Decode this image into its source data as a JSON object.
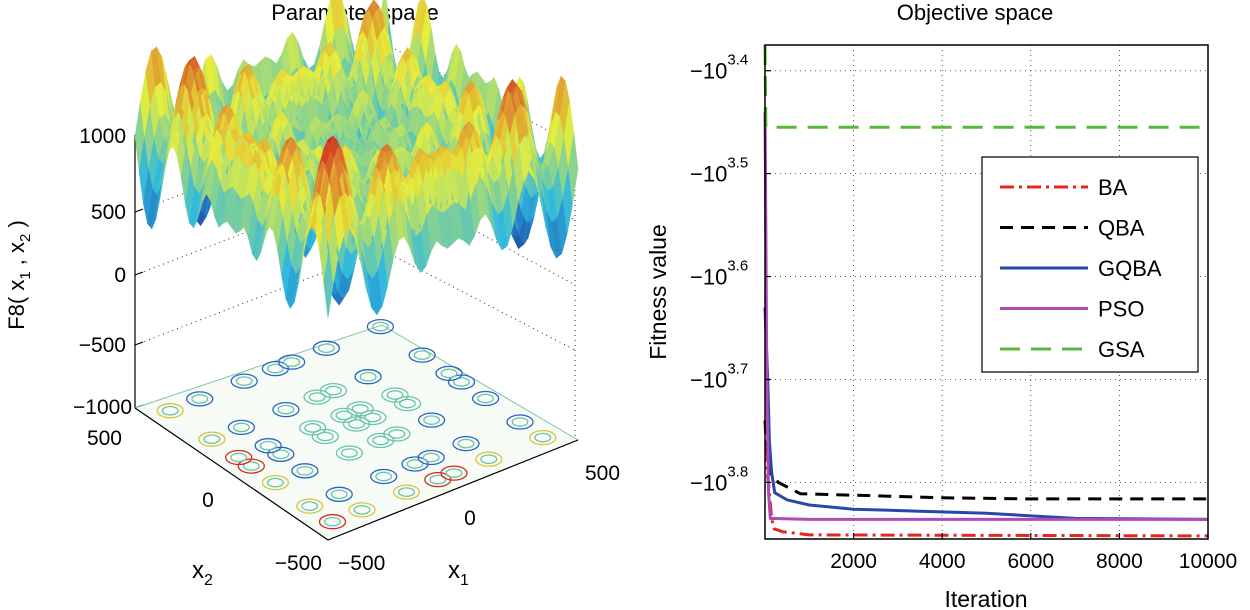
{
  "chart_data": [
    {
      "type": "surface3d",
      "title": "Parameter space",
      "zlabel_main": "F8( x",
      "zlabel_sub1": "1",
      "zlabel_mid": " , x",
      "zlabel_sub2": "2",
      "zlabel_end": " )",
      "xlabel_main": "x",
      "xlabel_sub": "1",
      "ylabel_main": "x",
      "ylabel_sub": "2",
      "zticks": [
        "1000",
        "500",
        "0",
        "−500",
        "−1000"
      ],
      "x1_ticks": [
        "−500",
        "0",
        "500"
      ],
      "x2_ticks": [
        "500",
        "0",
        "−500"
      ],
      "zlim": [
        -1000,
        1000
      ],
      "x1_range": [
        -500,
        500
      ],
      "x2_range": [
        -500,
        500
      ],
      "colors": {
        "low": "#1a3a9e",
        "midlow": "#2fb8e0",
        "mid": "#e8ee3c",
        "high": "#d0201e",
        "contour_a": "#2b62c8",
        "contour_b": "#68c4a8",
        "contour_c": "#d8c43a",
        "contour_d": "#d42a1e"
      }
    },
    {
      "type": "line",
      "title": "Objective space",
      "xlabel": "Iteration",
      "ylabel": "Fitness value",
      "x_ticks": [
        "2000",
        "4000",
        "6000",
        "8000",
        "10000"
      ],
      "x_tick_values": [
        2000,
        4000,
        6000,
        8000,
        10000
      ],
      "y_tick_base": "−10",
      "y_tick_exps": [
        "3.4",
        "3.5",
        "3.6",
        "3.7",
        "3.8"
      ],
      "y_tick_values": [
        3.4,
        3.5,
        3.6,
        3.7,
        3.8
      ],
      "xlim": [
        0,
        10000
      ],
      "ylim_exponent": [
        3.375,
        3.855
      ],
      "grid": true,
      "legend_position": "center-right",
      "series": [
        {
          "name": "BA",
          "color": "#e8251f",
          "dash": "14,5,3,5",
          "points": [
            [
              0,
              3.74
            ],
            [
              50,
              3.79
            ],
            [
              100,
              3.81
            ],
            [
              150,
              3.835
            ],
            [
              200,
              3.845
            ],
            [
              400,
              3.848
            ],
            [
              600,
              3.849
            ],
            [
              1000,
              3.851
            ],
            [
              10000,
              3.852
            ]
          ]
        },
        {
          "name": "QBA",
          "color": "#000000",
          "dash": "13,8",
          "points": [
            [
              0,
              3.74
            ],
            [
              100,
              3.79
            ],
            [
              300,
              3.8
            ],
            [
              800,
              3.811
            ],
            [
              1600,
              3.812
            ],
            [
              2500,
              3.813
            ],
            [
              4000,
              3.815
            ],
            [
              6000,
              3.816
            ],
            [
              10000,
              3.816
            ]
          ]
        },
        {
          "name": "GQBA",
          "color": "#2a46a8",
          "dash": "",
          "points": [
            [
              0,
              3.63
            ],
            [
              60,
              3.7
            ],
            [
              100,
              3.76
            ],
            [
              150,
              3.79
            ],
            [
              220,
              3.81
            ],
            [
              500,
              3.817
            ],
            [
              1000,
              3.822
            ],
            [
              2000,
              3.826
            ],
            [
              3500,
              3.828
            ],
            [
              5000,
              3.83
            ],
            [
              7000,
              3.835
            ],
            [
              10000,
              3.836
            ]
          ]
        },
        {
          "name": "PSO",
          "color": "#b04ab8",
          "dash": "",
          "points": [
            [
              0,
              3.44
            ],
            [
              20,
              3.56
            ],
            [
              40,
              3.7
            ],
            [
              60,
              3.76
            ],
            [
              80,
              3.81
            ],
            [
              120,
              3.835
            ],
            [
              1000,
              3.836
            ],
            [
              10000,
              3.836
            ]
          ]
        },
        {
          "name": "GSA",
          "color": "#58b83a",
          "dash": "20,11",
          "points": [
            [
              0,
              3.375
            ],
            [
              20,
              3.455
            ],
            [
              10000,
              3.455
            ]
          ]
        }
      ]
    }
  ]
}
